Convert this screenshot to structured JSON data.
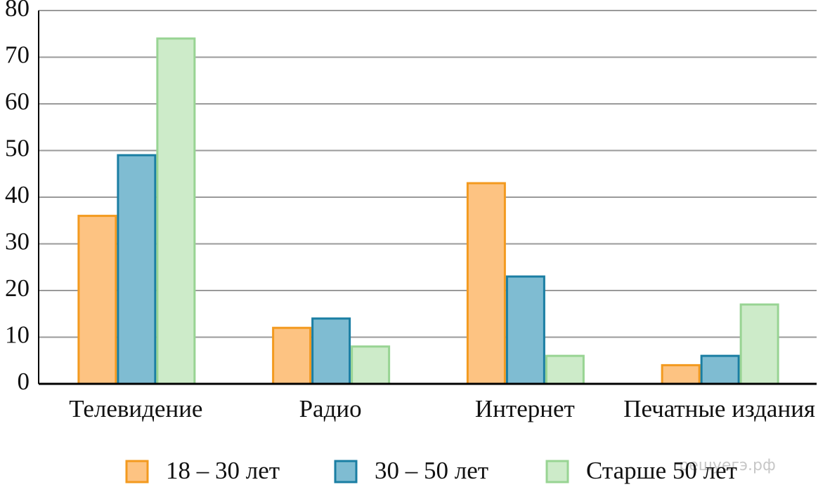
{
  "chart_data": {
    "type": "bar",
    "categories": [
      "Телевидение",
      "Радио",
      "Интернет",
      "Печатные издания"
    ],
    "series": [
      {
        "name": "18 – 30 лет",
        "color": "#fdc382",
        "stroke": "#f39a1f",
        "values": [
          36,
          12,
          43,
          4
        ]
      },
      {
        "name": "30 – 50 лет",
        "color": "#7fbcd2",
        "stroke": "#1a7ea3",
        "values": [
          49,
          14,
          23,
          6
        ]
      },
      {
        "name": "Старше 50 лет",
        "color": "#cdebc9",
        "stroke": "#98d493",
        "values": [
          74,
          8,
          6,
          17
        ]
      }
    ],
    "ylim": [
      0,
      80
    ],
    "yticks": [
      0,
      10,
      20,
      30,
      40,
      50,
      60,
      70,
      80
    ],
    "grid": true,
    "legend": "bottom"
  },
  "watermark": "решуегэ.рф"
}
